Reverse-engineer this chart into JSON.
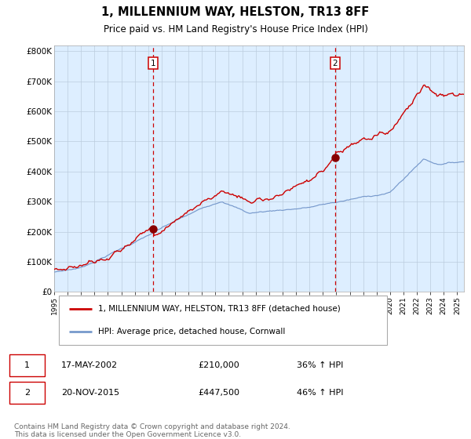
{
  "title": "1, MILLENNIUM WAY, HELSTON, TR13 8FF",
  "subtitle": "Price paid vs. HM Land Registry's House Price Index (HPI)",
  "title_fontsize": 10.5,
  "subtitle_fontsize": 8.5,
  "background_color": "#ffffff",
  "plot_bg_color": "#ddeeff",
  "ylabel_values": [
    "£0",
    "£100K",
    "£200K",
    "£300K",
    "£400K",
    "£500K",
    "£600K",
    "£700K",
    "£800K"
  ],
  "ylim": [
    0,
    820000
  ],
  "xlim_start": 1995.0,
  "xlim_end": 2025.5,
  "sale1_date": 2002.37,
  "sale1_price": 210000,
  "sale2_date": 2015.9,
  "sale2_price": 447500,
  "legend_label_red": "1, MILLENNIUM WAY, HELSTON, TR13 8FF (detached house)",
  "legend_label_blue": "HPI: Average price, detached house, Cornwall",
  "table_row1": [
    "1",
    "17-MAY-2002",
    "£210,000",
    "36% ↑ HPI"
  ],
  "table_row2": [
    "2",
    "20-NOV-2015",
    "£447,500",
    "46% ↑ HPI"
  ],
  "footer": "Contains HM Land Registry data © Crown copyright and database right 2024.\nThis data is licensed under the Open Government Licence v3.0.",
  "red_color": "#cc0000",
  "blue_color": "#7799cc",
  "dot_color": "#880000",
  "vline_color": "#cc0000",
  "grid_color": "#bbccdd",
  "box_edge_color": "#cc0000",
  "legend_border_color": "#aaaaaa",
  "spine_color": "#aaaaaa"
}
